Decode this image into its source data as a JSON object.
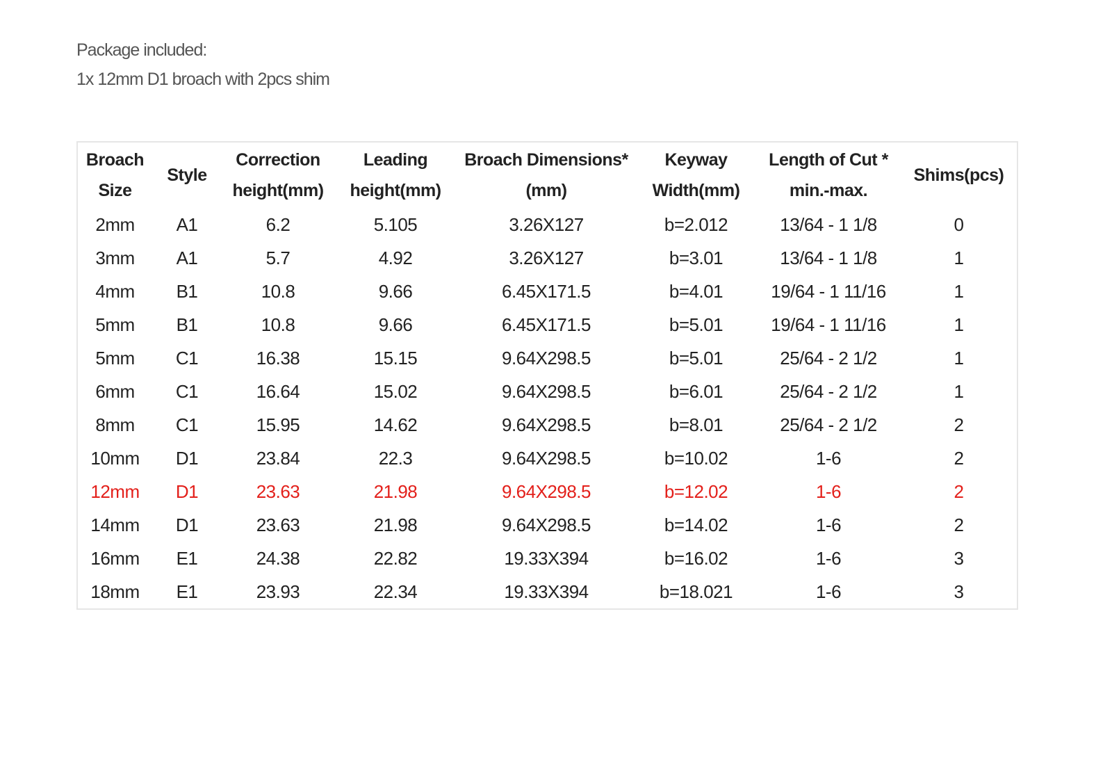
{
  "package": {
    "title": "Package included:",
    "item": "1x 12mm D1 broach with 2pcs shim"
  },
  "table": {
    "headers": [
      [
        "Broach",
        "Size"
      ],
      [
        "Style"
      ],
      [
        "Correction",
        "height(mm)"
      ],
      [
        "Leading",
        "height(mm)"
      ],
      [
        "Broach Dimensions*",
        "(mm)"
      ],
      [
        "Keyway",
        "Width(mm)"
      ],
      [
        "Length of Cut *",
        "min.-max."
      ],
      [
        "Shims(pcs)"
      ]
    ],
    "rows": [
      [
        "2mm",
        "A1",
        "6.2",
        "5.105",
        "3.26X127",
        "b=2.012",
        "13/64 - 1 1/8",
        "0"
      ],
      [
        "3mm",
        "A1",
        "5.7",
        "4.92",
        "3.26X127",
        "b=3.01",
        "13/64 - 1 1/8",
        "1"
      ],
      [
        "4mm",
        "B1",
        "10.8",
        "9.66",
        "6.45X171.5",
        "b=4.01",
        "19/64 - 1 11/16",
        "1"
      ],
      [
        "5mm",
        "B1",
        "10.8",
        "9.66",
        "6.45X171.5",
        "b=5.01",
        "19/64 - 1 11/16",
        "1"
      ],
      [
        "5mm",
        "C1",
        "16.38",
        "15.15",
        "9.64X298.5",
        "b=5.01",
        "25/64 - 2 1/2",
        "1"
      ],
      [
        "6mm",
        "C1",
        "16.64",
        "15.02",
        "9.64X298.5",
        "b=6.01",
        "25/64 - 2 1/2",
        "1"
      ],
      [
        "8mm",
        "C1",
        "15.95",
        "14.62",
        "9.64X298.5",
        "b=8.01",
        "25/64 - 2 1/2",
        "2"
      ],
      [
        "10mm",
        "D1",
        "23.84",
        "22.3",
        "9.64X298.5",
        "b=10.02",
        "1-6",
        "2"
      ],
      [
        "12mm",
        "D1",
        "23.63",
        "21.98",
        "9.64X298.5",
        "b=12.02",
        "1-6",
        "2"
      ],
      [
        "14mm",
        "D1",
        "23.63",
        "21.98",
        "9.64X298.5",
        "b=14.02",
        "1-6",
        "2"
      ],
      [
        "16mm",
        "E1",
        "24.38",
        "22.82",
        "19.33X394",
        "b=16.02",
        "1-6",
        "3"
      ],
      [
        "18mm",
        "E1",
        "23.93",
        "22.34",
        "19.33X394",
        "b=18.021",
        "1-6",
        "3"
      ]
    ],
    "highlight_row": 8,
    "highlight_color": "#e3201b"
  }
}
